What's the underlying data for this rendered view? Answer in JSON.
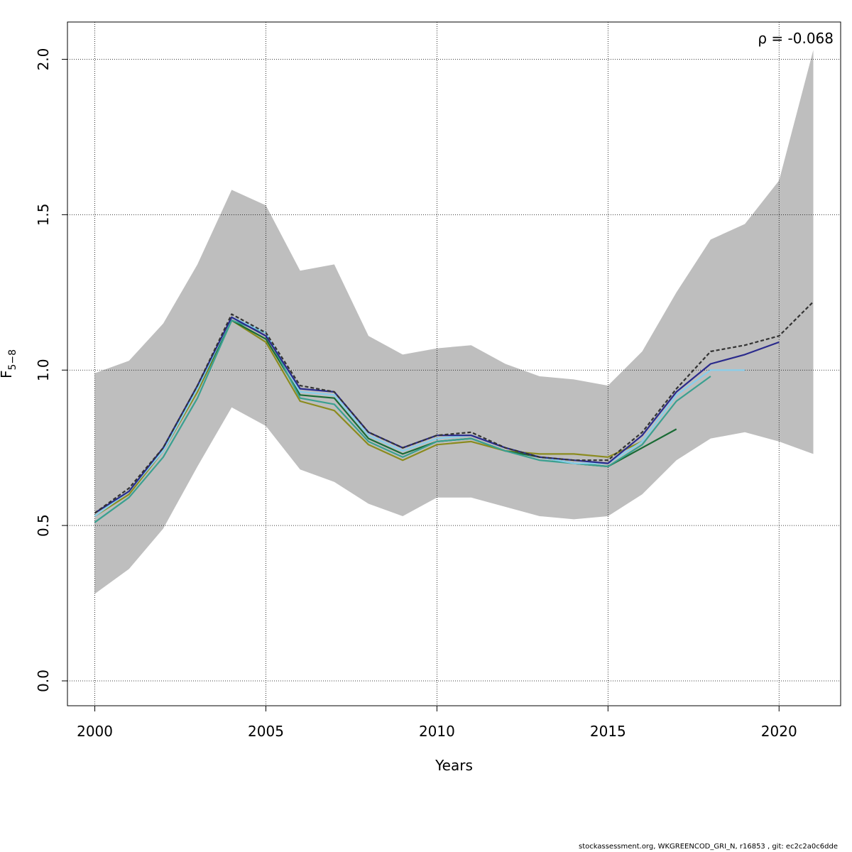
{
  "chart_data": {
    "type": "line",
    "xlabel": "Years",
    "ylabel": "F",
    "ylabel_sub": "5−8",
    "annotation": "ρ = -0.068",
    "xlim": [
      1999.2,
      2021.8
    ],
    "ylim": [
      -0.08,
      2.12
    ],
    "xticks": [
      2000,
      2005,
      2010,
      2015,
      2020
    ],
    "yticks": [
      0.0,
      0.5,
      1.0,
      1.5,
      2.0
    ],
    "ytick_labels": [
      "0.0",
      "0.5",
      "1.0",
      "1.5",
      "2.0"
    ],
    "grid": true,
    "band": {
      "x": [
        2000,
        2001,
        2002,
        2003,
        2004,
        2005,
        2006,
        2007,
        2008,
        2009,
        2010,
        2011,
        2012,
        2013,
        2014,
        2015,
        2016,
        2017,
        2018,
        2019,
        2020,
        2021
      ],
      "upper": [
        0.99,
        1.03,
        1.15,
        1.34,
        1.58,
        1.53,
        1.32,
        1.34,
        1.11,
        1.05,
        1.07,
        1.08,
        1.02,
        0.98,
        0.97,
        0.95,
        1.06,
        1.25,
        1.42,
        1.47,
        1.61,
        2.03
      ],
      "lower": [
        0.28,
        0.36,
        0.49,
        0.69,
        0.88,
        0.82,
        0.68,
        0.64,
        0.57,
        0.53,
        0.59,
        0.59,
        0.56,
        0.53,
        0.52,
        0.53,
        0.6,
        0.71,
        0.78,
        0.8,
        0.77,
        0.73
      ],
      "color": "#bebebe"
    },
    "series": [
      {
        "color": "#8b8b1e",
        "dash": false,
        "x": [
          2000,
          2001,
          2002,
          2003,
          2004,
          2005,
          2006,
          2007,
          2008,
          2009,
          2010,
          2011,
          2012,
          2013,
          2014,
          2015,
          2016
        ],
        "values": [
          0.53,
          0.6,
          0.74,
          0.93,
          1.16,
          1.09,
          0.9,
          0.87,
          0.76,
          0.71,
          0.76,
          0.77,
          0.74,
          0.73,
          0.73,
          0.72,
          0.77
        ]
      },
      {
        "color": "#1a6b35",
        "dash": false,
        "x": [
          2000,
          2001,
          2002,
          2003,
          2004,
          2005,
          2006,
          2007,
          2008,
          2009,
          2010,
          2011,
          2012,
          2013,
          2014,
          2015,
          2016,
          2017
        ],
        "values": [
          0.54,
          0.61,
          0.75,
          0.94,
          1.16,
          1.1,
          0.92,
          0.91,
          0.78,
          0.73,
          0.77,
          0.78,
          0.74,
          0.72,
          0.7,
          0.69,
          0.75,
          0.81
        ]
      },
      {
        "color": "#3aa090",
        "dash": false,
        "x": [
          2000,
          2001,
          2002,
          2003,
          2004,
          2005,
          2006,
          2007,
          2008,
          2009,
          2010,
          2011,
          2012,
          2013,
          2014,
          2015,
          2016,
          2017,
          2018
        ],
        "values": [
          0.51,
          0.59,
          0.72,
          0.91,
          1.16,
          1.12,
          0.91,
          0.89,
          0.77,
          0.72,
          0.77,
          0.78,
          0.74,
          0.71,
          0.7,
          0.69,
          0.76,
          0.9,
          0.98
        ]
      },
      {
        "color": "#87ceeb",
        "dash": false,
        "x": [
          2000,
          2001,
          2002,
          2003,
          2004,
          2005,
          2006,
          2007,
          2008,
          2009,
          2010,
          2011,
          2012,
          2013,
          2014,
          2015,
          2016,
          2017,
          2018,
          2019
        ],
        "values": [
          0.53,
          0.61,
          0.74,
          0.94,
          1.17,
          1.12,
          0.93,
          0.92,
          0.79,
          0.74,
          0.78,
          0.79,
          0.75,
          0.72,
          0.7,
          0.7,
          0.77,
          0.92,
          1.0,
          1.0
        ]
      },
      {
        "color": "#2a2a8c",
        "dash": false,
        "x": [
          2000,
          2001,
          2002,
          2003,
          2004,
          2005,
          2006,
          2007,
          2008,
          2009,
          2010,
          2011,
          2012,
          2013,
          2014,
          2015,
          2016,
          2017,
          2018,
          2019,
          2020
        ],
        "values": [
          0.54,
          0.61,
          0.75,
          0.95,
          1.17,
          1.11,
          0.94,
          0.93,
          0.8,
          0.75,
          0.79,
          0.79,
          0.75,
          0.72,
          0.71,
          0.7,
          0.79,
          0.93,
          1.02,
          1.05,
          1.09
        ]
      },
      {
        "color": "#333333",
        "dash": true,
        "x": [
          2000,
          2001,
          2002,
          2003,
          2004,
          2005,
          2006,
          2007,
          2008,
          2009,
          2010,
          2011,
          2012,
          2013,
          2014,
          2015,
          2016,
          2017,
          2018,
          2019,
          2020,
          2021
        ],
        "values": [
          0.54,
          0.62,
          0.75,
          0.95,
          1.18,
          1.12,
          0.95,
          0.93,
          0.8,
          0.75,
          0.79,
          0.8,
          0.75,
          0.72,
          0.71,
          0.71,
          0.8,
          0.94,
          1.06,
          1.08,
          1.11,
          1.22
        ]
      }
    ]
  },
  "footer": {
    "credit": "stockassessment.org, WKGREENCOD_GRI_N, r16853 , git: ec2c2a0c6dde"
  }
}
